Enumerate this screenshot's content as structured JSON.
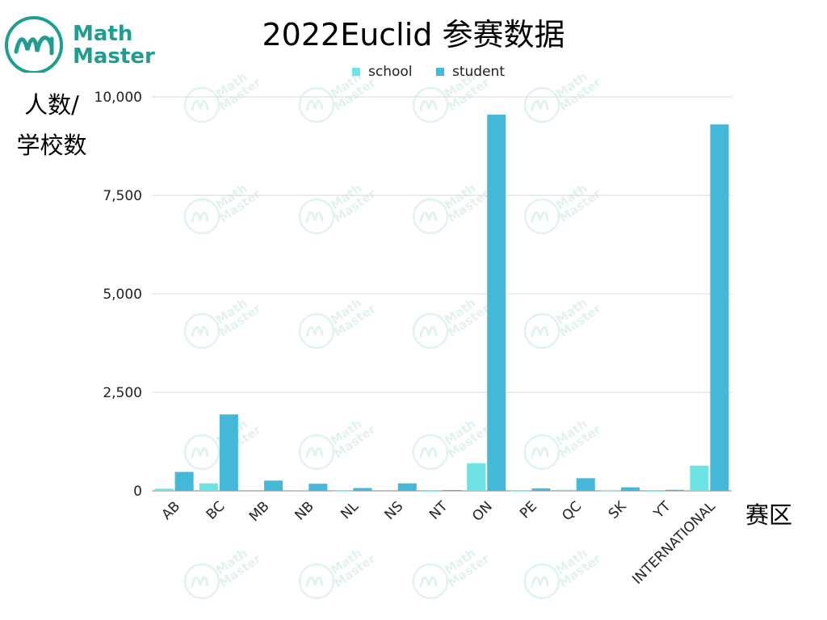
{
  "brand": {
    "line1": "Math",
    "line2": "Master",
    "color": "#1f9e8f",
    "watermark_line1": "Math",
    "watermark_line2": "Master"
  },
  "chart_data": {
    "type": "bar",
    "title": "2022Euclid 参赛数据",
    "ylabel_line1": "人数/",
    "ylabel_line2": "学校数",
    "xlabel": "赛区",
    "ylim": [
      0,
      10000
    ],
    "yticks": [
      "0",
      "2,500",
      "5,000",
      "7,500",
      "10,000"
    ],
    "ytick_values": [
      0,
      2500,
      5000,
      7500,
      10000
    ],
    "grid": true,
    "legend_position": "top",
    "categories": [
      "AB",
      "BC",
      "MB",
      "NB",
      "NL",
      "NS",
      "NT",
      "ON",
      "PE",
      "QC",
      "SK",
      "YT",
      "INTERNATIONAL"
    ],
    "series": [
      {
        "name": "school",
        "color": "#6ee3e3",
        "values": [
          55,
          190,
          20,
          15,
          5,
          20,
          3,
          700,
          5,
          25,
          10,
          3,
          640
        ]
      },
      {
        "name": "student",
        "color": "#44b8d6",
        "values": [
          480,
          1940,
          260,
          180,
          70,
          190,
          20,
          9550,
          60,
          320,
          90,
          25,
          9300
        ]
      }
    ]
  }
}
